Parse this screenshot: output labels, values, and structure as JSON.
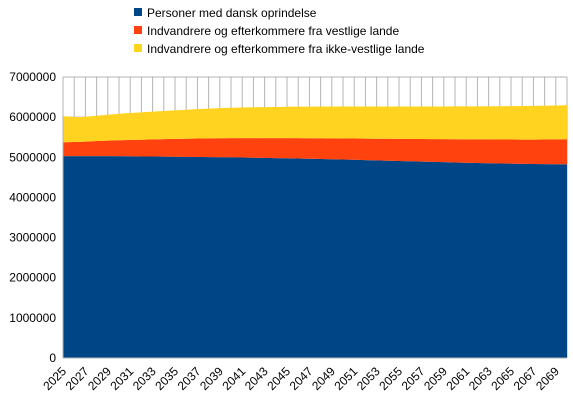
{
  "chart_data": {
    "type": "area",
    "stacked": true,
    "x": [
      "2025",
      "2026",
      "2027",
      "2028",
      "2029",
      "2030",
      "2031",
      "2032",
      "2033",
      "2034",
      "2035",
      "2036",
      "2037",
      "2038",
      "2039",
      "2040",
      "2041",
      "2042",
      "2043",
      "2044",
      "2045",
      "2046",
      "2047",
      "2048",
      "2049",
      "2050",
      "2051",
      "2052",
      "2053",
      "2054",
      "2055",
      "2056",
      "2057",
      "2058",
      "2059",
      "2060",
      "2061",
      "2062",
      "2063",
      "2064",
      "2065",
      "2066",
      "2067",
      "2068",
      "2069",
      "2070"
    ],
    "x_tick_labels": [
      "2025",
      "2027",
      "2029",
      "2031",
      "2033",
      "2035",
      "2037",
      "2039",
      "2041",
      "2043",
      "2045",
      "2047",
      "2049",
      "2051",
      "2053",
      "2055",
      "2057",
      "2059",
      "2061",
      "2063",
      "2065",
      "2067",
      "2069"
    ],
    "y_tick_labels": [
      "0",
      "1000000",
      "2000000",
      "3000000",
      "4000000",
      "5000000",
      "6000000",
      "7000000"
    ],
    "ylim": [
      0,
      7000000
    ],
    "grid": true,
    "legend_position": "top",
    "series": [
      {
        "name": "Personer med dansk oprindelse",
        "color": "#004586",
        "values": [
          5030000,
          5030000,
          5030000,
          5030000,
          5030000,
          5030000,
          5025000,
          5020000,
          5018000,
          5015000,
          5013000,
          5010000,
          5008000,
          5005000,
          5002000,
          5000000,
          4995000,
          4990000,
          4985000,
          4980000,
          4975000,
          4970000,
          4965000,
          4958000,
          4952000,
          4945000,
          4938000,
          4930000,
          4922000,
          4915000,
          4907000,
          4900000,
          4892000,
          4885000,
          4878000,
          4871000,
          4864000,
          4858000,
          4852000,
          4846000,
          4841000,
          4836000,
          4833000,
          4830000,
          4828000,
          4827000
        ]
      },
      {
        "name": "Indvandrere og efterkommere fra vestlige lande",
        "color": "#ff420e",
        "values": [
          345000,
          350000,
          360000,
          375000,
          385000,
          395000,
          408000,
          418000,
          428000,
          438000,
          445000,
          453000,
          460000,
          467000,
          472000,
          478000,
          483000,
          488000,
          492000,
          497000,
          501000,
          506000,
          510000,
          515000,
          520000,
          525000,
          530000,
          536000,
          541000,
          546000,
          552000,
          557000,
          563000,
          568000,
          573000,
          578000,
          583000,
          588000,
          593000,
          597000,
          601000,
          605000,
          608000,
          612000,
          617000,
          623000
        ]
      },
      {
        "name": "Indvandrere og efterkommere fra ikke-vestlige lande",
        "color": "#ffd320",
        "values": [
          650000,
          620000,
          620000,
          630000,
          645000,
          660000,
          670000,
          680000,
          690000,
          700000,
          712000,
          722000,
          732000,
          741000,
          750000,
          757000,
          762000,
          768000,
          773000,
          777000,
          782000,
          785000,
          788000,
          791000,
          793000,
          795000,
          797000,
          799000,
          801000,
          803000,
          805000,
          807000,
          809000,
          812000,
          815000,
          818000,
          821000,
          823000,
          826000,
          829000,
          833000,
          837000,
          840000,
          843000,
          846000,
          850000
        ]
      }
    ]
  }
}
